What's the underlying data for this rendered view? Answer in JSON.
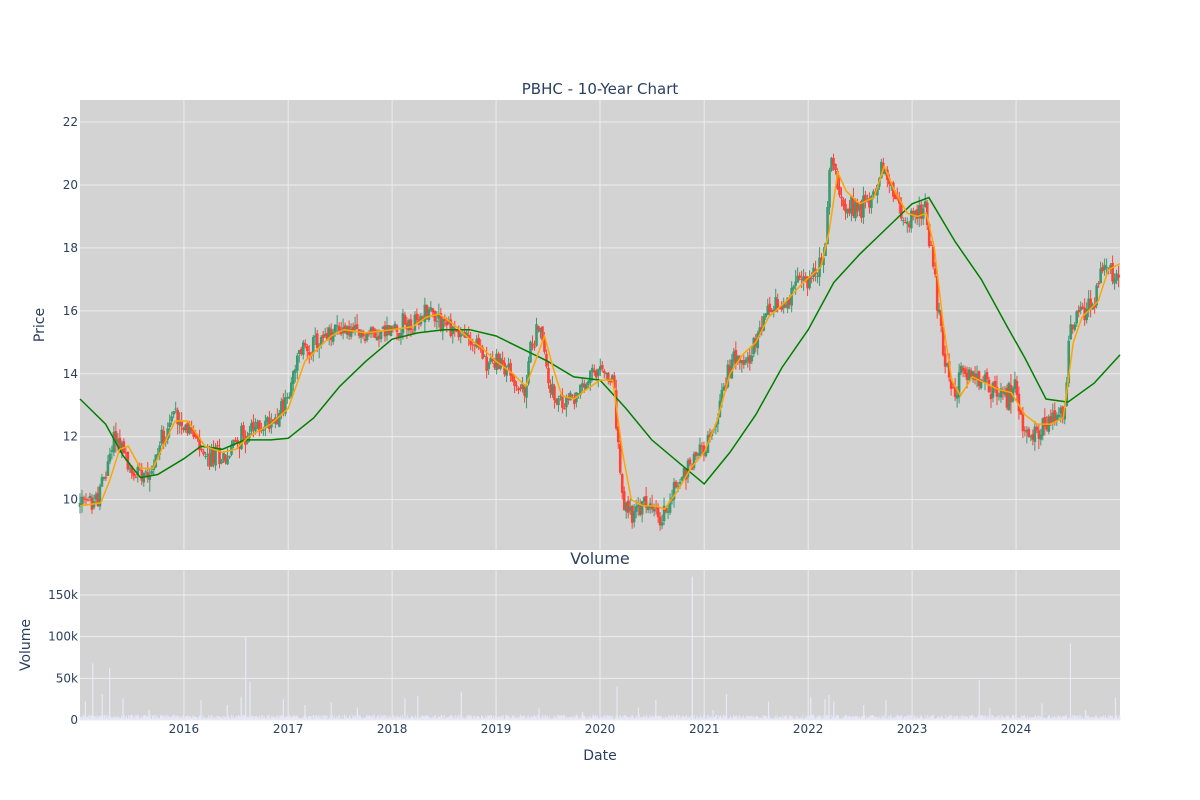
{
  "chart_data": [
    {
      "type": "candlestick",
      "title": "PBHC - 10-Year Chart",
      "ylabel": "Price",
      "xlim": [
        "2015-01-01",
        "2024-12-31"
      ],
      "ylim": [
        8.4,
        22.7
      ],
      "yticks": [
        10,
        12,
        14,
        16,
        18,
        20,
        22
      ],
      "colors": {
        "increasing": "#3d9970",
        "decreasing": "#ff4136",
        "ma_short": "#ffa500",
        "ma_long": "#008000",
        "panel": "#d3d3d3"
      },
      "price_path": [
        [
          "2015-01-01",
          9.8
        ],
        [
          "2015-03-01",
          10.0
        ],
        [
          "2015-04-01",
          10.8
        ],
        [
          "2015-05-01",
          12.1
        ],
        [
          "2015-06-01",
          11.6
        ],
        [
          "2015-07-01",
          10.7
        ],
        [
          "2015-08-01",
          11.0
        ],
        [
          "2015-09-15",
          11.0
        ],
        [
          "2015-10-15",
          12.0
        ],
        [
          "2015-12-01",
          12.8
        ],
        [
          "2016-01-15",
          12.3
        ],
        [
          "2016-02-15",
          11.8
        ],
        [
          "2016-03-15",
          11.2
        ],
        [
          "2016-05-01",
          11.5
        ],
        [
          "2016-06-01",
          11.3
        ],
        [
          "2016-07-01",
          11.9
        ],
        [
          "2016-09-01",
          12.2
        ],
        [
          "2016-11-01",
          12.5
        ],
        [
          "2017-01-01",
          13.2
        ],
        [
          "2017-02-15",
          14.8
        ],
        [
          "2017-04-01",
          14.9
        ],
        [
          "2017-05-15",
          15.1
        ],
        [
          "2017-07-01",
          15.5
        ],
        [
          "2017-09-01",
          15.2
        ],
        [
          "2017-11-01",
          15.3
        ],
        [
          "2018-01-01",
          15.4
        ],
        [
          "2018-02-15",
          15.6
        ],
        [
          "2018-04-01",
          15.5
        ],
        [
          "2018-05-01",
          16.1
        ],
        [
          "2018-06-15",
          15.8
        ],
        [
          "2018-08-01",
          15.4
        ],
        [
          "2018-09-15",
          15.2
        ],
        [
          "2018-11-01",
          14.8
        ],
        [
          "2018-12-15",
          14.3
        ],
        [
          "2019-02-01",
          14.3
        ],
        [
          "2019-03-15",
          13.6
        ],
        [
          "2019-04-15",
          13.3
        ],
        [
          "2019-05-01",
          14.8
        ],
        [
          "2019-06-01",
          15.6
        ],
        [
          "2019-07-01",
          14.0
        ],
        [
          "2019-08-01",
          12.9
        ],
        [
          "2019-09-01",
          13.1
        ],
        [
          "2019-10-15",
          13.3
        ],
        [
          "2019-12-01",
          13.9
        ],
        [
          "2020-01-15",
          14.0
        ],
        [
          "2020-02-15",
          13.7
        ],
        [
          "2020-03-01",
          12.2
        ],
        [
          "2020-03-20",
          9.8
        ],
        [
          "2020-05-01",
          9.5
        ],
        [
          "2020-06-15",
          9.9
        ],
        [
          "2020-08-01",
          9.3
        ],
        [
          "2020-09-15",
          10.3
        ],
        [
          "2020-11-01",
          11.0
        ],
        [
          "2020-12-15",
          11.6
        ],
        [
          "2021-02-01",
          12.0
        ],
        [
          "2021-03-15",
          13.8
        ],
        [
          "2021-05-01",
          14.8
        ],
        [
          "2021-06-15",
          14.5
        ],
        [
          "2021-08-01",
          15.8
        ],
        [
          "2021-10-01",
          16.2
        ],
        [
          "2021-12-01",
          16.9
        ],
        [
          "2022-02-01",
          17.2
        ],
        [
          "2022-03-01",
          17.8
        ],
        [
          "2022-03-20",
          21.0
        ],
        [
          "2022-05-01",
          19.5
        ],
        [
          "2022-07-01",
          19.3
        ],
        [
          "2022-08-15",
          19.6
        ],
        [
          "2022-09-15",
          20.6
        ],
        [
          "2022-10-15",
          20.0
        ],
        [
          "2022-12-01",
          18.8
        ],
        [
          "2023-01-15",
          19.1
        ],
        [
          "2023-02-15",
          19.2
        ],
        [
          "2023-03-15",
          17.5
        ],
        [
          "2023-04-15",
          15.2
        ],
        [
          "2023-05-15",
          13.4
        ],
        [
          "2023-07-01",
          14.0
        ],
        [
          "2023-08-15",
          13.8
        ],
        [
          "2023-10-01",
          13.6
        ],
        [
          "2023-11-15",
          13.2
        ],
        [
          "2024-01-01",
          13.5
        ],
        [
          "2024-02-01",
          12.0
        ],
        [
          "2024-04-01",
          12.3
        ],
        [
          "2024-06-01",
          12.5
        ],
        [
          "2024-06-20",
          13.0
        ],
        [
          "2024-07-10",
          15.5
        ],
        [
          "2024-08-15",
          16.0
        ],
        [
          "2024-10-01",
          16.3
        ],
        [
          "2024-11-01",
          17.3
        ],
        [
          "2024-12-31",
          17.2
        ]
      ],
      "ma_short_path": [
        [
          "2015-01-01",
          9.8
        ],
        [
          "2015-03-15",
          9.9
        ],
        [
          "2015-04-15",
          10.6
        ],
        [
          "2015-05-20",
          11.6
        ],
        [
          "2015-06-20",
          11.7
        ],
        [
          "2015-08-01",
          11.0
        ],
        [
          "2015-09-15",
          11.0
        ],
        [
          "2015-10-15",
          11.6
        ],
        [
          "2015-12-01",
          12.5
        ],
        [
          "2016-01-15",
          12.5
        ],
        [
          "2016-03-15",
          11.7
        ],
        [
          "2016-05-15",
          11.5
        ],
        [
          "2016-07-01",
          11.6
        ],
        [
          "2016-08-15",
          12.0
        ],
        [
          "2016-11-01",
          12.4
        ],
        [
          "2017-01-01",
          12.9
        ],
        [
          "2017-03-01",
          14.4
        ],
        [
          "2017-04-15",
          14.8
        ],
        [
          "2017-06-01",
          15.2
        ],
        [
          "2017-07-15",
          15.4
        ],
        [
          "2017-10-01",
          15.3
        ],
        [
          "2018-01-01",
          15.4
        ],
        [
          "2018-03-15",
          15.5
        ],
        [
          "2018-05-01",
          15.8
        ],
        [
          "2018-06-15",
          15.9
        ],
        [
          "2018-08-01",
          15.6
        ],
        [
          "2018-10-01",
          15.1
        ],
        [
          "2018-11-15",
          14.8
        ],
        [
          "2019-01-01",
          14.4
        ],
        [
          "2019-03-01",
          14.0
        ],
        [
          "2019-04-15",
          13.6
        ],
        [
          "2019-05-15",
          14.3
        ],
        [
          "2019-06-20",
          15.2
        ],
        [
          "2019-07-20",
          14.2
        ],
        [
          "2019-08-20",
          13.3
        ],
        [
          "2019-10-01",
          13.2
        ],
        [
          "2019-11-15",
          13.5
        ],
        [
          "2020-01-01",
          13.8
        ],
        [
          "2020-02-15",
          13.8
        ],
        [
          "2020-03-20",
          11.5
        ],
        [
          "2020-04-20",
          10.0
        ],
        [
          "2020-06-01",
          9.8
        ],
        [
          "2020-07-15",
          9.8
        ],
        [
          "2020-08-15",
          9.7
        ],
        [
          "2020-10-01",
          10.3
        ],
        [
          "2020-11-15",
          11.0
        ],
        [
          "2021-01-01",
          11.5
        ],
        [
          "2021-02-15",
          12.5
        ],
        [
          "2021-04-01",
          14.0
        ],
        [
          "2021-05-15",
          14.6
        ],
        [
          "2021-07-01",
          15.0
        ],
        [
          "2021-08-15",
          15.8
        ],
        [
          "2021-10-15",
          16.3
        ],
        [
          "2021-12-15",
          16.9
        ],
        [
          "2022-02-15",
          17.4
        ],
        [
          "2022-03-15",
          18.5
        ],
        [
          "2022-04-15",
          20.4
        ],
        [
          "2022-05-15",
          19.8
        ],
        [
          "2022-07-01",
          19.4
        ],
        [
          "2022-08-20",
          19.6
        ],
        [
          "2022-09-25",
          20.6
        ],
        [
          "2022-11-01",
          19.8
        ],
        [
          "2022-12-15",
          19.1
        ],
        [
          "2023-01-20",
          19.0
        ],
        [
          "2023-02-20",
          19.1
        ],
        [
          "2023-03-20",
          18.0
        ],
        [
          "2023-04-20",
          15.6
        ],
        [
          "2023-05-20",
          13.8
        ],
        [
          "2023-06-20",
          13.3
        ],
        [
          "2023-08-01",
          13.9
        ],
        [
          "2023-09-15",
          13.7
        ],
        [
          "2023-11-01",
          13.5
        ],
        [
          "2023-12-15",
          13.4
        ],
        [
          "2024-02-01",
          12.7
        ],
        [
          "2024-03-15",
          12.4
        ],
        [
          "2024-05-01",
          12.4
        ],
        [
          "2024-06-15",
          12.6
        ],
        [
          "2024-07-20",
          15.0
        ],
        [
          "2024-08-20",
          15.8
        ],
        [
          "2024-10-15",
          16.3
        ],
        [
          "2024-11-20",
          17.3
        ],
        [
          "2024-12-31",
          17.5
        ]
      ],
      "ma_long_path": [
        [
          "2015-01-01",
          13.2
        ],
        [
          "2015-04-01",
          12.4
        ],
        [
          "2015-06-01",
          11.4
        ],
        [
          "2015-08-01",
          10.7
        ],
        [
          "2015-10-01",
          10.8
        ],
        [
          "2016-01-01",
          11.3
        ],
        [
          "2016-03-01",
          11.7
        ],
        [
          "2016-05-15",
          11.6
        ],
        [
          "2016-08-01",
          11.9
        ],
        [
          "2016-11-01",
          11.9
        ],
        [
          "2017-01-01",
          11.95
        ],
        [
          "2017-04-01",
          12.6
        ],
        [
          "2017-07-01",
          13.6
        ],
        [
          "2017-10-01",
          14.4
        ],
        [
          "2018-01-01",
          15.1
        ],
        [
          "2018-04-01",
          15.3
        ],
        [
          "2018-07-01",
          15.4
        ],
        [
          "2018-10-01",
          15.4
        ],
        [
          "2019-01-01",
          15.2
        ],
        [
          "2019-04-01",
          14.8
        ],
        [
          "2019-07-01",
          14.4
        ],
        [
          "2019-10-01",
          13.9
        ],
        [
          "2020-01-01",
          13.8
        ],
        [
          "2020-04-01",
          12.9
        ],
        [
          "2020-07-01",
          11.9
        ],
        [
          "2020-10-01",
          11.2
        ],
        [
          "2021-01-01",
          10.5
        ],
        [
          "2021-04-01",
          11.5
        ],
        [
          "2021-07-01",
          12.7
        ],
        [
          "2021-10-01",
          14.2
        ],
        [
          "2022-01-01",
          15.4
        ],
        [
          "2022-04-01",
          16.9
        ],
        [
          "2022-07-01",
          17.8
        ],
        [
          "2022-10-01",
          18.6
        ],
        [
          "2023-01-01",
          19.4
        ],
        [
          "2023-03-01",
          19.6
        ],
        [
          "2023-06-01",
          18.2
        ],
        [
          "2023-09-01",
          17.0
        ],
        [
          "2023-12-01",
          15.5
        ],
        [
          "2024-02-01",
          14.5
        ],
        [
          "2024-04-15",
          13.2
        ],
        [
          "2024-07-01",
          13.1
        ],
        [
          "2024-10-01",
          13.7
        ],
        [
          "2024-12-31",
          14.6
        ]
      ]
    },
    {
      "type": "bar",
      "title": "Volume",
      "ylabel": "Volume",
      "xlabel": "Date",
      "xlim": [
        "2015-01-01",
        "2024-12-31"
      ],
      "ylim": [
        0,
        180000
      ],
      "yticks": [
        0,
        50000,
        100000,
        150000
      ],
      "ytick_labels": [
        "0",
        "50k",
        "100k",
        "150k"
      ],
      "xticks": [
        "2016-01-01",
        "2017-01-01",
        "2018-01-01",
        "2019-01-01",
        "2020-01-01",
        "2021-01-01",
        "2022-01-01",
        "2023-01-01",
        "2024-01-01"
      ],
      "xtick_labels": [
        "2016",
        "2017",
        "2018",
        "2019",
        "2020",
        "2021",
        "2022",
        "2023",
        "2024"
      ],
      "bar_color": "#e8e8f8",
      "baseline_volume": 4000,
      "spikes": [
        [
          "2015-01-20",
          22000
        ],
        [
          "2015-02-15",
          68000
        ],
        [
          "2015-03-20",
          31000
        ],
        [
          "2015-04-15",
          62000
        ],
        [
          "2015-06-01",
          26000
        ],
        [
          "2015-09-01",
          12000
        ],
        [
          "2016-03-01",
          24000
        ],
        [
          "2016-06-01",
          18000
        ],
        [
          "2016-07-20",
          28000
        ],
        [
          "2016-08-05",
          100000
        ],
        [
          "2016-08-20",
          46000
        ],
        [
          "2016-12-15",
          25000
        ],
        [
          "2017-03-01",
          18000
        ],
        [
          "2017-06-01",
          21000
        ],
        [
          "2017-09-01",
          15000
        ],
        [
          "2018-02-15",
          26000
        ],
        [
          "2018-04-01",
          29000
        ],
        [
          "2018-09-01",
          34000
        ],
        [
          "2019-01-01",
          30000
        ],
        [
          "2019-06-01",
          14000
        ],
        [
          "2019-11-01",
          10000
        ],
        [
          "2020-03-01",
          40000
        ],
        [
          "2020-05-15",
          15000
        ],
        [
          "2020-07-15",
          24000
        ],
        [
          "2020-11-20",
          172000
        ],
        [
          "2021-02-01",
          12000
        ],
        [
          "2021-03-20",
          31000
        ],
        [
          "2021-08-15",
          22000
        ],
        [
          "2022-01-10",
          27000
        ],
        [
          "2022-03-01",
          25000
        ],
        [
          "2022-03-15",
          30000
        ],
        [
          "2022-04-01",
          22000
        ],
        [
          "2022-07-15",
          18000
        ],
        [
          "2022-10-01",
          24000
        ],
        [
          "2023-08-25",
          48000
        ],
        [
          "2023-10-01",
          14000
        ],
        [
          "2024-04-01",
          20000
        ],
        [
          "2024-07-10",
          92000
        ],
        [
          "2024-09-01",
          12000
        ],
        [
          "2024-12-15",
          27000
        ]
      ]
    }
  ]
}
